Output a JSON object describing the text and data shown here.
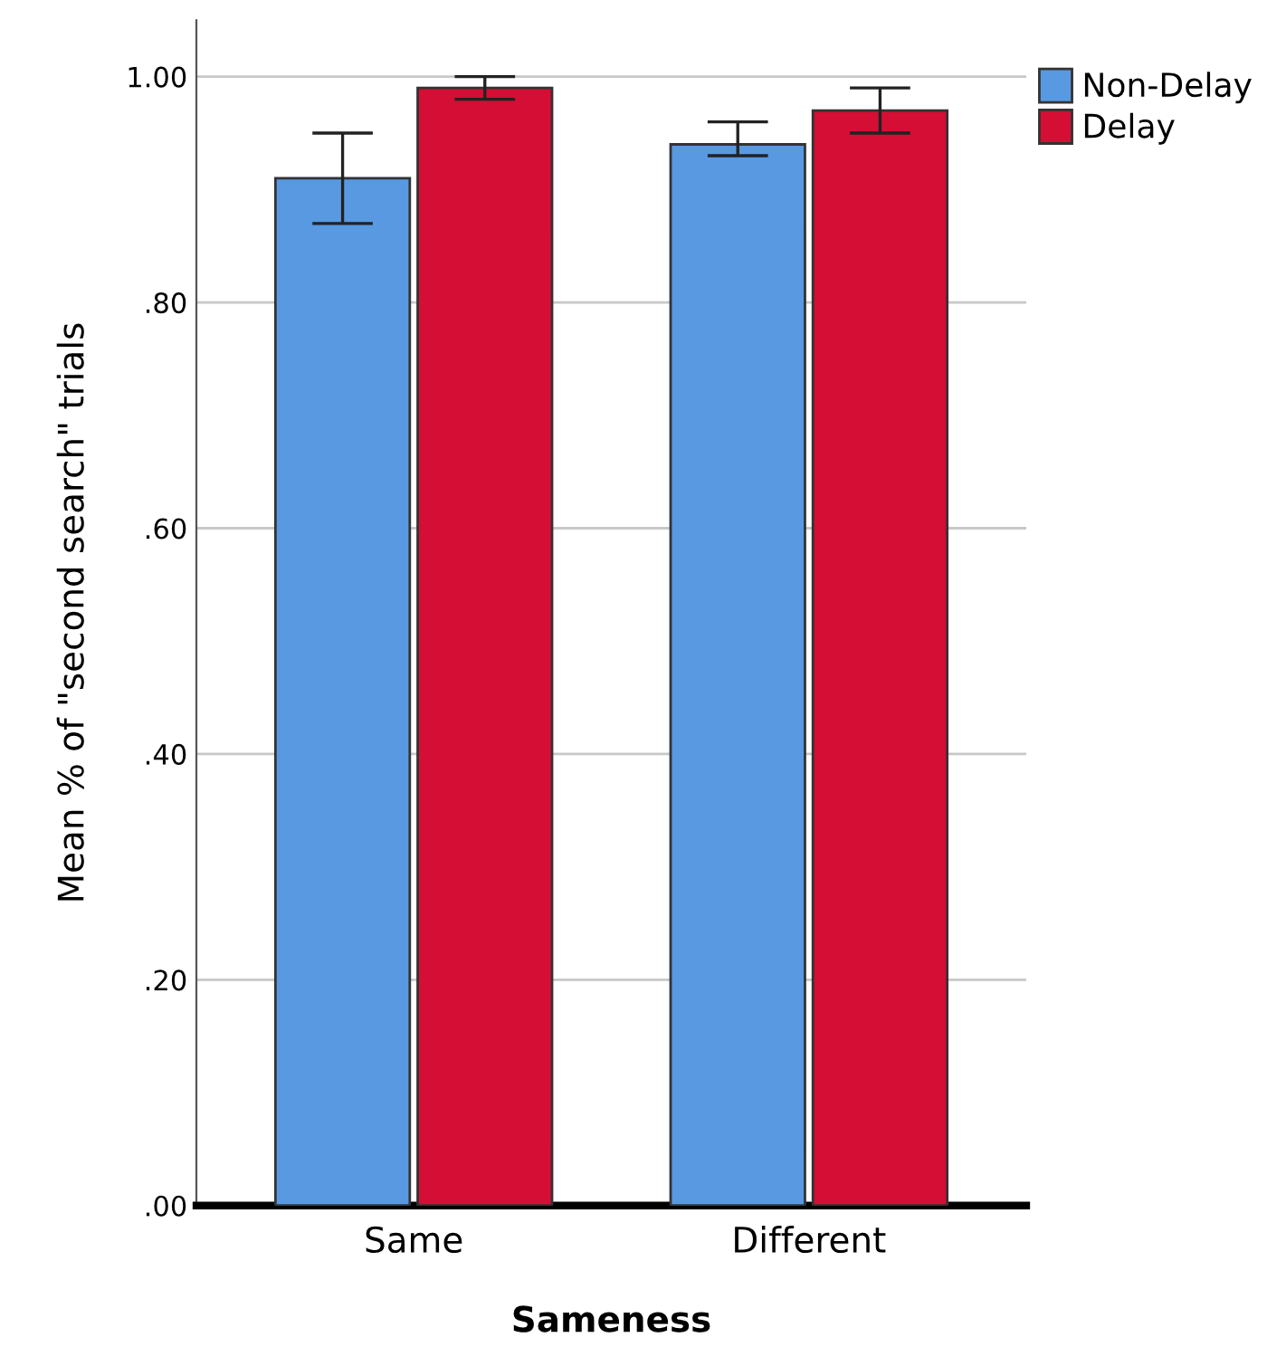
{
  "chart_data": {
    "type": "bar",
    "xlabel": "Sameness",
    "ylabel": "Mean % of \"second search\" trials",
    "categories": [
      "Same",
      "Different"
    ],
    "series": [
      {
        "name": "Non-Delay",
        "color": "#5899e2",
        "values": [
          0.91,
          0.94
        ],
        "errors": [
          [
            0.87,
            0.95
          ],
          [
            0.93,
            0.96
          ]
        ]
      },
      {
        "name": "Delay",
        "color": "#d40e35",
        "values": [
          0.99,
          0.97
        ],
        "errors": [
          [
            0.98,
            1.0
          ],
          [
            0.95,
            0.99
          ]
        ]
      }
    ],
    "ylim": [
      0,
      1.05
    ],
    "yticks": [
      {
        "value": 0,
        "label": ".00"
      },
      {
        "value": 0.2,
        "label": ".20"
      },
      {
        "value": 0.4,
        "label": ".40"
      },
      {
        "value": 0.6,
        "label": ".60"
      },
      {
        "value": 0.8,
        "label": ".80"
      },
      {
        "value": 1.0,
        "label": "1.00"
      }
    ],
    "grid": "y",
    "legend": "top right"
  }
}
